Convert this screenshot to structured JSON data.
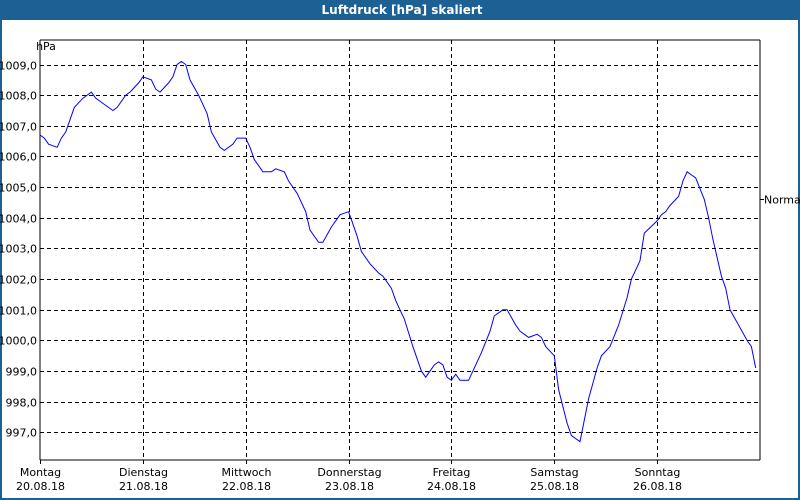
{
  "window": {
    "title": "Luftdruck [hPa] skaliert"
  },
  "chart_data": {
    "type": "line",
    "title": "Luftdruck [hPa] skaliert",
    "ylabel": "hPa",
    "xlabel": "",
    "xunit": "hours since Montag 20.08.18 00:00",
    "xlim": [
      0,
      168
    ],
    "ylim": [
      996.1,
      1009.8
    ],
    "grid": true,
    "line_color": "#0000ff",
    "yticks": [
      997,
      998,
      999,
      1000,
      1001,
      1002,
      1003,
      1004,
      1005,
      1006,
      1007,
      1008,
      1009
    ],
    "ytick_labels": [
      "997,0",
      "998,0",
      "999,0",
      "1000,0",
      "1001,0",
      "1002,0",
      "1003,0",
      "1004,0",
      "1005,0",
      "1006,0",
      "1007,0",
      "1008,0",
      "1009,0"
    ],
    "xticks": [
      {
        "hour": 0,
        "day": "Montag",
        "date": "20.08.18"
      },
      {
        "hour": 24,
        "day": "Dienstag",
        "date": "21.08.18"
      },
      {
        "hour": 48,
        "day": "Mittwoch",
        "date": "22.08.18"
      },
      {
        "hour": 72,
        "day": "Donnerstag",
        "date": "23.08.18"
      },
      {
        "hour": 96,
        "day": "Freitag",
        "date": "24.08.18"
      },
      {
        "hour": 120,
        "day": "Samstag",
        "date": "25.08.18"
      },
      {
        "hour": 144,
        "day": "Sonntag",
        "date": "26.08.18"
      }
    ],
    "reference": {
      "label": "Normal",
      "value": 1004.6
    },
    "series": [
      {
        "x": [
          0,
          1,
          2,
          4,
          5,
          6,
          7,
          8,
          10,
          12,
          13,
          15,
          17,
          18,
          20,
          21,
          23,
          24,
          26,
          27,
          28,
          30,
          31,
          32,
          33,
          34,
          35,
          37,
          39,
          40,
          42,
          43,
          45,
          46,
          48,
          49,
          50,
          52,
          54,
          55,
          57,
          58,
          60,
          62,
          63,
          65,
          66,
          68,
          69,
          70,
          72,
          73,
          74,
          75,
          77,
          79,
          80,
          82,
          83,
          85,
          87,
          89,
          90,
          92,
          93,
          94,
          95,
          96,
          97,
          98,
          100,
          101,
          103,
          105,
          106,
          108,
          109,
          111,
          112,
          114,
          116,
          117,
          118,
          120,
          121,
          123,
          124,
          126,
          127,
          128,
          130,
          131,
          133,
          135,
          137,
          138,
          140,
          141,
          144,
          145,
          146,
          147,
          149,
          150,
          151,
          152,
          153,
          155,
          156,
          157,
          159,
          160,
          161,
          163,
          165,
          166,
          167
        ],
        "y": [
          1006.7,
          1006.6,
          1006.4,
          1006.3,
          1006.6,
          1006.8,
          1007.2,
          1007.6,
          1007.9,
          1008.1,
          1007.9,
          1007.7,
          1007.5,
          1007.6,
          1008.0,
          1008.1,
          1008.4,
          1008.6,
          1008.5,
          1008.2,
          1008.1,
          1008.4,
          1008.6,
          1009.0,
          1009.1,
          1009.0,
          1008.5,
          1008.0,
          1007.4,
          1006.8,
          1006.3,
          1006.2,
          1006.4,
          1006.6,
          1006.6,
          1006.3,
          1005.9,
          1005.5,
          1005.5,
          1005.6,
          1005.5,
          1005.2,
          1004.8,
          1004.2,
          1003.6,
          1003.2,
          1003.2,
          1003.7,
          1003.9,
          1004.1,
          1004.2,
          1003.8,
          1003.4,
          1002.9,
          1002.5,
          1002.2,
          1002.1,
          1001.7,
          1001.3,
          1000.7,
          999.8,
          999.0,
          998.8,
          999.2,
          999.3,
          999.2,
          998.8,
          998.7,
          998.9,
          998.7,
          998.7,
          999.0,
          999.6,
          1000.3,
          1000.8,
          1001.0,
          1001.0,
          1000.5,
          1000.3,
          1000.1,
          1000.2,
          1000.1,
          999.8,
          999.5,
          998.4,
          997.3,
          996.9,
          996.7,
          997.4,
          998.1,
          999.1,
          999.5,
          999.8,
          1000.5,
          1001.4,
          1002.0,
          1002.6,
          1003.5,
          1003.9,
          1004.1,
          1004.2,
          1004.4,
          1004.7,
          1005.2,
          1005.5,
          1005.4,
          1005.3,
          1004.6,
          1004.0,
          1003.3,
          1002.1,
          1001.7,
          1001.0,
          1000.5,
          1000.0,
          999.8,
          999.1
        ]
      }
    ]
  }
}
